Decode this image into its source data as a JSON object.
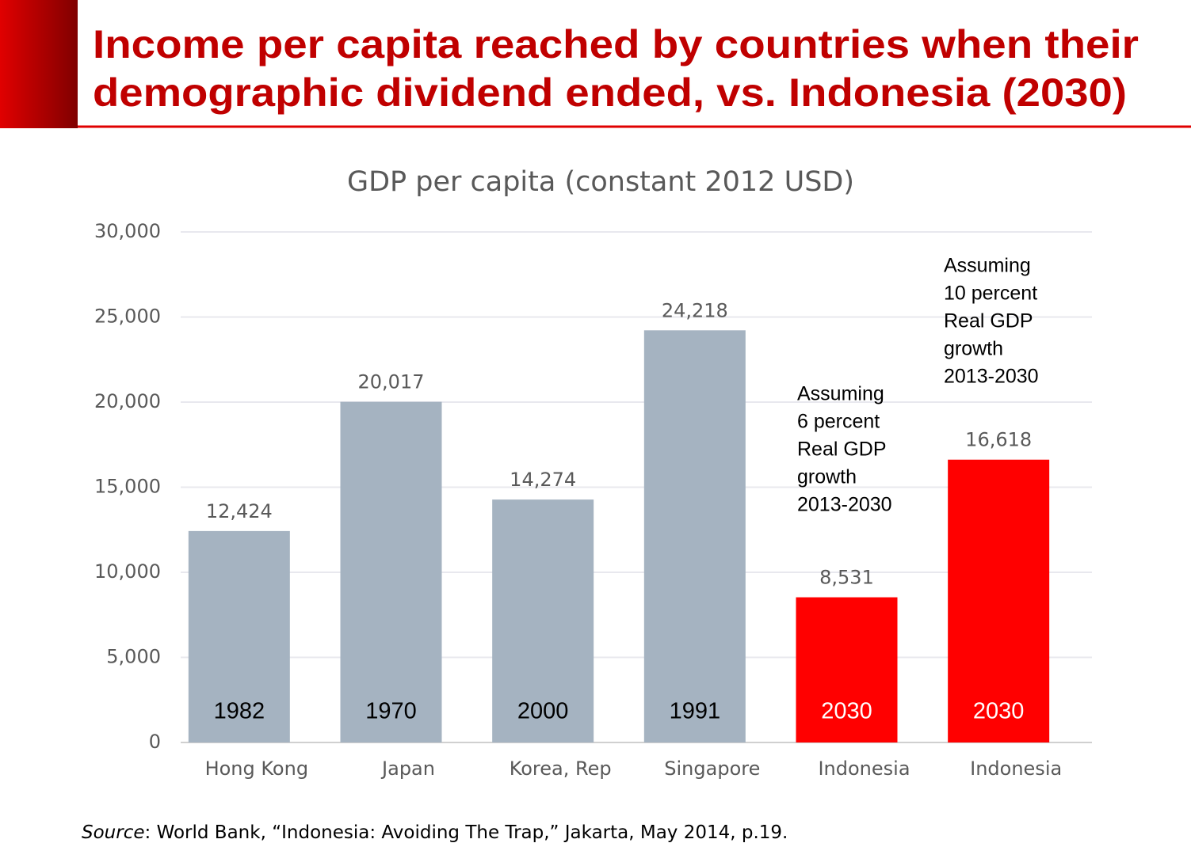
{
  "slide_title": [
    "Income per capita reached by countries when their",
    "demographic dividend ended, vs. Indonesia (2030)"
  ],
  "chart_data": {
    "type": "bar",
    "title": "GDP per capita (constant 2012 USD)",
    "categories": [
      "Hong Kong",
      "Japan",
      "Korea, Rep",
      "Singapore",
      "Indonesia",
      "Indonesia"
    ],
    "values": [
      12424,
      20017,
      14274,
      24218,
      8531,
      16618
    ],
    "value_labels": [
      "12,424",
      "20,017",
      "14,274",
      "24,218",
      "8,531",
      "16,618"
    ],
    "years": [
      "1982",
      "1970",
      "2000",
      "1991",
      "2030",
      "2030"
    ],
    "colors": [
      "#a5b3c1",
      "#a5b3c1",
      "#a5b3c1",
      "#a5b3c1",
      "#ff0000",
      "#ff0000"
    ],
    "year_colors": [
      "#000000",
      "#000000",
      "#000000",
      "#000000",
      "#ffffff",
      "#ffffff"
    ],
    "ylim": [
      0,
      30000
    ],
    "yticks": [
      0,
      {
        "value": 5000,
        "label": "5,000"
      },
      {
        "value": 10000,
        "label": "10,000"
      },
      {
        "value": 15000,
        "label": "15,000"
      },
      {
        "value": 20000,
        "label": "20,000"
      },
      {
        "value": 25000,
        "label": "25,000"
      },
      {
        "value": 30000,
        "label": "30,000"
      }
    ],
    "grid": true,
    "annotations": [
      [
        "Assuming",
        "6 percent",
        "Real GDP",
        "growth",
        "2013-2030"
      ],
      [
        "Assuming",
        "10 percent",
        "Real GDP",
        "growth",
        "2013-2030"
      ]
    ]
  },
  "source": {
    "label": "Source",
    "text": ": World Bank, “Indonesia: Avoiding The Trap,” Jakarta, May 2014, p.19."
  }
}
